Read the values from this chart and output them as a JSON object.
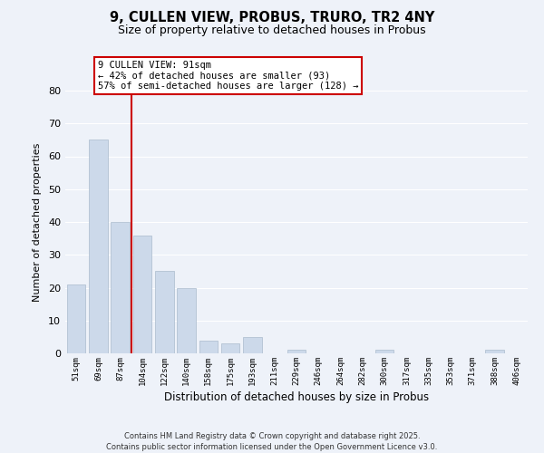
{
  "title": "9, CULLEN VIEW, PROBUS, TRURO, TR2 4NY",
  "subtitle": "Size of property relative to detached houses in Probus",
  "xlabel": "Distribution of detached houses by size in Probus",
  "ylabel": "Number of detached properties",
  "categories": [
    "51sqm",
    "69sqm",
    "87sqm",
    "104sqm",
    "122sqm",
    "140sqm",
    "158sqm",
    "175sqm",
    "193sqm",
    "211sqm",
    "229sqm",
    "246sqm",
    "264sqm",
    "282sqm",
    "300sqm",
    "317sqm",
    "335sqm",
    "353sqm",
    "371sqm",
    "388sqm",
    "406sqm"
  ],
  "values": [
    21,
    65,
    40,
    36,
    25,
    20,
    4,
    3,
    5,
    0,
    1,
    0,
    0,
    0,
    1,
    0,
    0,
    0,
    0,
    1,
    0
  ],
  "bar_color": "#ccd9ea",
  "bar_edge_color": "#aabbcc",
  "vline_x": 2.5,
  "vline_color": "#cc0000",
  "annotation_line1": "9 CULLEN VIEW: 91sqm",
  "annotation_line2": "← 42% of detached houses are smaller (93)",
  "annotation_line3": "57% of semi-detached houses are larger (128) →",
  "ylim": [
    0,
    80
  ],
  "yticks": [
    0,
    10,
    20,
    30,
    40,
    50,
    60,
    70,
    80
  ],
  "bg_color": "#eef2f9",
  "grid_color": "#ffffff",
  "footer_line1": "Contains HM Land Registry data © Crown copyright and database right 2025.",
  "footer_line2": "Contains public sector information licensed under the Open Government Licence v3.0."
}
